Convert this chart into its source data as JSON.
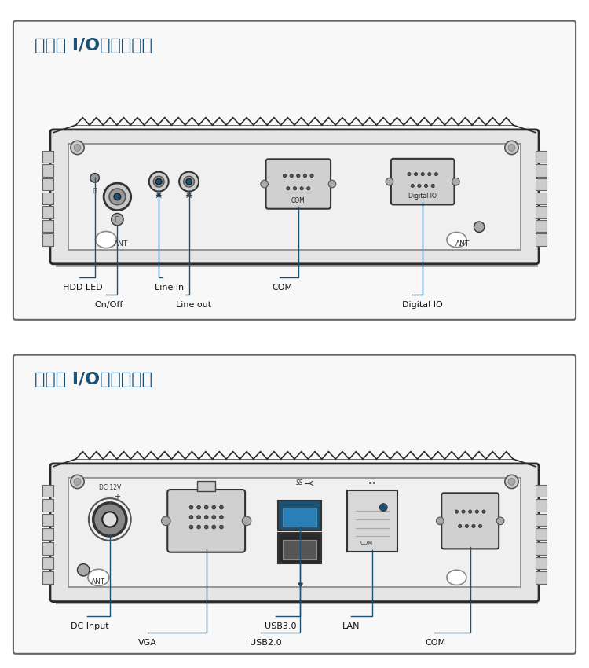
{
  "bg_color": "#ffffff",
  "border_color": "#2a2a2a",
  "line_color": "#1a5276",
  "label_color": "#111111",
  "title_color": "#1a5276",
  "panel1_title": "前面板 I/O扩展布局图",
  "panel2_title": "后面板 I/O扩展布局图",
  "front_labels": [
    "HDD LED",
    "On/Off",
    "Line in",
    "Line out",
    "COM",
    "Digital IO"
  ],
  "back_labels": [
    "DC Input",
    "VGA",
    "USB3.0",
    "USB2.0",
    "LAN",
    "COM"
  ],
  "device_fill": "#e5e5e5",
  "inner_fill": "#f0f0f0",
  "connector_color": "#444444",
  "highlight_blue": "#1a5276",
  "outer_box_color": "#555555",
  "fin_color": "#cccccc",
  "screw_color": "#bbbbbb"
}
